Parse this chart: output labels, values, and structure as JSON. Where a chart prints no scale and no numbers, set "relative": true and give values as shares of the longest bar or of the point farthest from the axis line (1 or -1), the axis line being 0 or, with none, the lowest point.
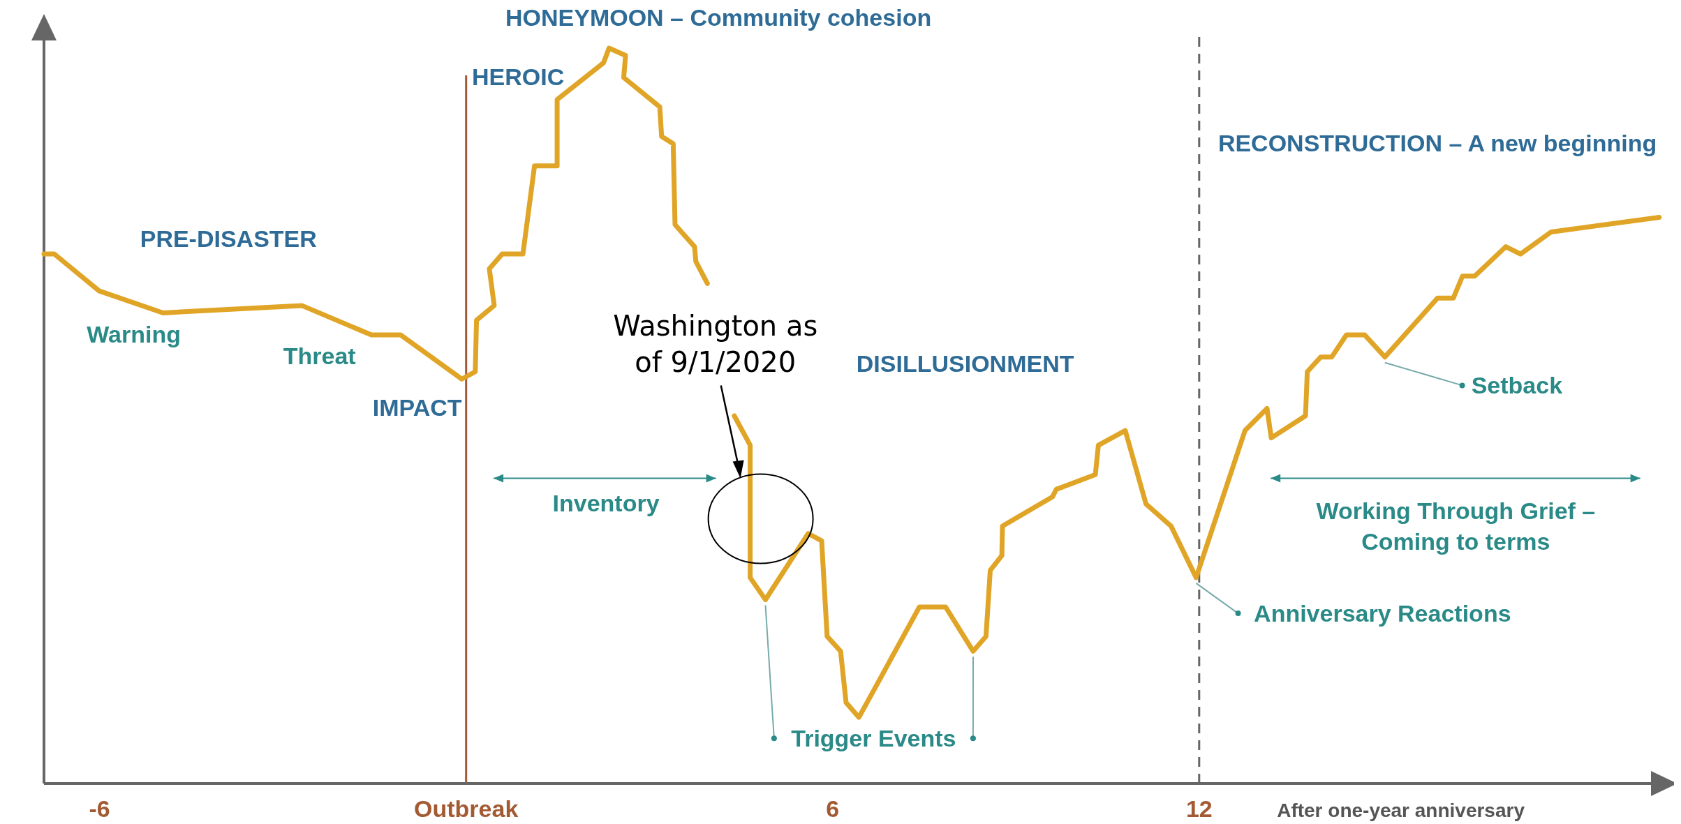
{
  "chart_data": {
    "type": "line",
    "relative": true,
    "legend": false,
    "grid": false,
    "marker": "none",
    "line_style": "solid",
    "tick_labels": "x",
    "xlim": [
      -6.91,
      19.83
    ],
    "xticks": [
      -6,
      {
        "value": 0,
        "label": "Outbreak"
      },
      6,
      12,
      {
        "value": 15.3,
        "label": "After one-year anniversary"
      }
    ],
    "series": [
      {
        "color": "#e0a526",
        "x": [
          -6.91,
          -6.74,
          -6.01,
          -4.96,
          -2.69,
          -1.55,
          -1.07,
          -0.07,
          0.15,
          0.17,
          0.46,
          0.38,
          0.59,
          0.93,
          1.12,
          1.49,
          1.49,
          2.25,
          2.34,
          2.61,
          2.58,
          3.17,
          3.2,
          3.39,
          3.42,
          3.74,
          3.76,
          3.95,
          3.99,
          4.34,
          4.39,
          4.65,
          4.65,
          4.9,
          5.6,
          5.82,
          5.91,
          6.13,
          6.22,
          6.43,
          7.42,
          7.85,
          8.3,
          8.51,
          8.58,
          8.77,
          8.78,
          9.6,
          9.66,
          10.3,
          10.35,
          10.79,
          11.13,
          11.54,
          11.95,
          12.75,
          13.11,
          13.18,
          13.74,
          13.77,
          13.99,
          14.17,
          14.41,
          14.71,
          15.04,
          15.9,
          16.16,
          16.31,
          16.51,
          17.02,
          17.26,
          17.76,
          19.53
        ],
        "values": [
          0.72,
          0.72,
          0.67,
          0.64,
          0.65,
          0.61,
          0.61,
          0.55,
          0.56,
          0.63,
          0.65,
          0.7,
          0.72,
          0.72,
          0.84,
          0.84,
          0.93,
          0.98,
          1,
          0.99,
          0.96,
          0.92,
          0.88,
          0.87,
          0.76,
          0.73,
          0.71,
          0.68,
          null,
          null,
          0.5,
          0.46,
          0.28,
          0.25,
          0.34,
          0.33,
          0.2,
          0.18,
          0.11,
          0.09,
          0.24,
          0.24,
          0.18,
          0.2,
          0.29,
          0.31,
          0.35,
          0.39,
          0.4,
          0.42,
          0.46,
          0.48,
          0.38,
          0.35,
          0.28,
          0.48,
          0.51,
          0.47,
          0.5,
          0.56,
          0.58,
          0.58,
          0.61,
          0.61,
          0.58,
          0.66,
          0.66,
          0.69,
          0.69,
          0.73,
          0.72,
          0.75,
          0.77
        ]
      }
    ],
    "ref_lines": [
      {
        "axis": "x",
        "value": 0,
        "color": "#a35a33",
        "line_style": "solid"
      },
      {
        "axis": "x",
        "value": 12,
        "color": "#666666",
        "line_style": "dashed"
      }
    ],
    "annotations": [
      "PRE-DISASTER",
      "Warning",
      "Threat",
      "IMPACT",
      "HEROIC",
      "HONEYMOON – Community cohesion",
      "DISILLUSIONMENT",
      "RECONSTRUCTION – A new beginning",
      "Inventory",
      "Working Through Grief –\nComing to terms",
      {
        "text": "Trigger Events",
        "x": 4.9,
        "y": 0.25
      },
      {
        "text": "Setback",
        "x": 15.04,
        "y": 0.58
      },
      {
        "text": "Anniversary Reactions",
        "x": 11.95,
        "y": 0.28
      },
      "Washington as of 9/1/2020"
    ]
  }
}
